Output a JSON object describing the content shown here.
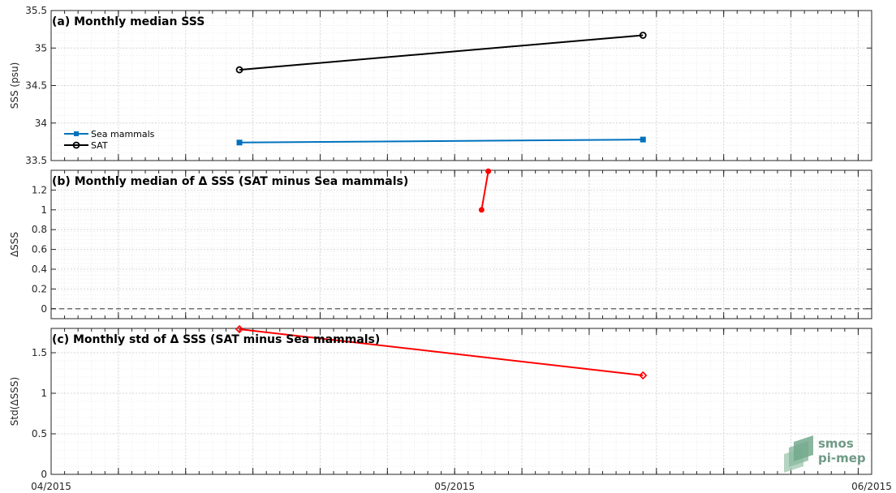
{
  "chart_data": [
    {
      "type": "line",
      "title": "(a) Monthly median SSS",
      "xlabel": "",
      "ylabel": "SSS (psu)",
      "ylim": [
        33.5,
        35.5
      ],
      "yticks": [
        33.5,
        34,
        34.5,
        35,
        35.5
      ],
      "grid": true,
      "legend_position": "lower-left",
      "series": [
        {
          "name": "Sea mammals",
          "color": "#0072bd",
          "marker": "filled-square",
          "x": [
            "2015-04-15",
            "2015-05-15"
          ],
          "values": [
            33.74,
            33.78
          ]
        },
        {
          "name": "SAT",
          "color": "#000000",
          "marker": "open-circle",
          "x": [
            "2015-04-15",
            "2015-05-15"
          ],
          "values": [
            34.71,
            35.17
          ]
        }
      ]
    },
    {
      "type": "line",
      "title": "(b) Monthly median of Δ SSS (SAT minus Sea mammals)",
      "xlabel": "",
      "ylabel": "ΔSSS",
      "ylim": [
        -0.1,
        1.4
      ],
      "yticks": [
        0,
        0.2,
        0.4,
        0.6,
        0.8,
        1,
        1.2
      ],
      "grid": true,
      "zero_line": true,
      "series": [
        {
          "color": "#ff0000",
          "marker": "filled-circle",
          "x": [
            "2015-05-03",
            "2015-05-03 12:00"
          ],
          "values": [
            1.0,
            1.39
          ]
        }
      ]
    },
    {
      "type": "line",
      "title": "(c) Monthly std of Δ SSS (SAT minus Sea mammals)",
      "xlabel": "",
      "ylabel": "Std(ΔSSS)",
      "ylim": [
        0,
        1.8
      ],
      "yticks": [
        0,
        0.5,
        1,
        1.5
      ],
      "grid": true,
      "series": [
        {
          "color": "#ff0000",
          "marker": "open-diamond",
          "x": [
            "2015-04-15",
            "2015-05-15"
          ],
          "values": [
            1.79,
            1.22
          ]
        }
      ]
    }
  ],
  "x_axis": {
    "range": [
      "2015-04-01",
      "2015-06-01"
    ],
    "tick_labels": [
      "04/2015",
      "05/2015",
      "06/2015"
    ]
  },
  "logo": {
    "line1": "smos",
    "line2": "pi-mep",
    "color": "#6f9a85"
  }
}
